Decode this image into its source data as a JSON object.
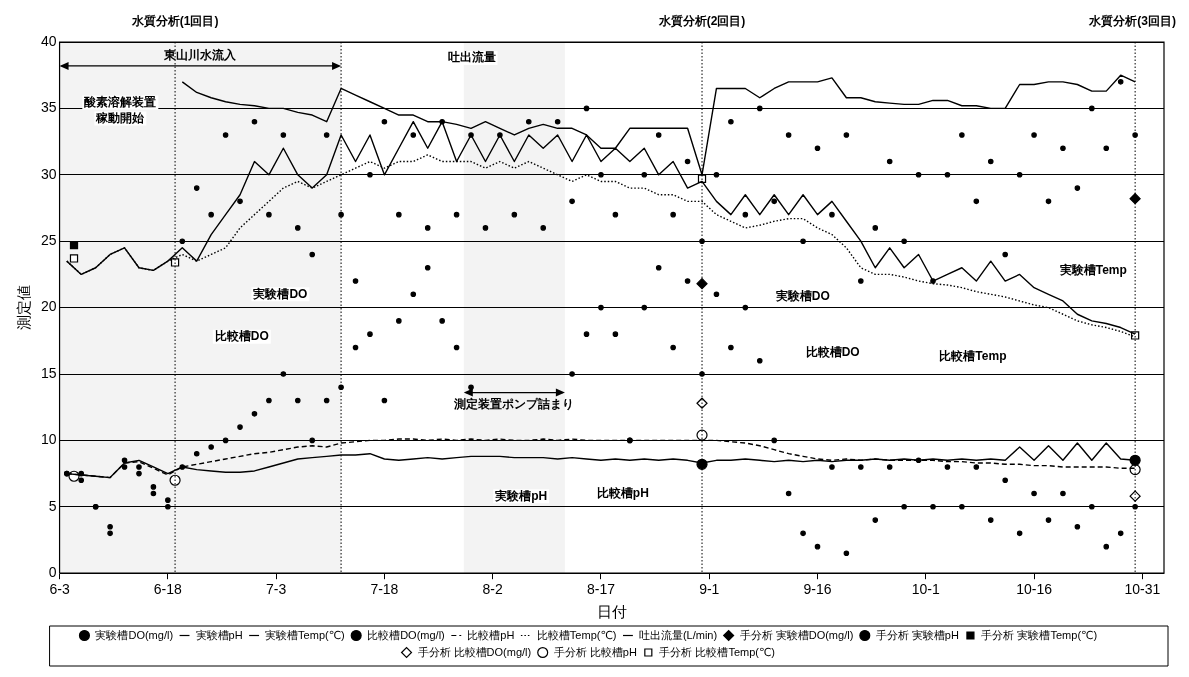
{
  "chart_data": {
    "type": "line",
    "xlabel": "日付",
    "ylabel": "測定値",
    "grid": "y",
    "legend": "bottom",
    "x": [
      "--06-04",
      "--06-06",
      "--06-08",
      "--06-10",
      "--06-12",
      "--06-14",
      "--06-16",
      "--06-18",
      "--06-20",
      "--06-22",
      "--06-24",
      "--06-26",
      "--06-28",
      "--06-30",
      "--07-02",
      "--07-04",
      "--07-06",
      "--07-08",
      "--07-10",
      "--07-12",
      "--07-14",
      "--07-16",
      "--07-18",
      "--07-20",
      "--07-22",
      "--07-24",
      "--07-26",
      "--07-28",
      "--07-30",
      "--08-01",
      "--08-03",
      "--08-05",
      "--08-07",
      "--08-09",
      "--08-11",
      "--08-13",
      "--08-15",
      "--08-17",
      "--08-19",
      "--08-21",
      "--08-23",
      "--08-25",
      "--08-27",
      "--08-29",
      "--08-31",
      "--09-02",
      "--09-04",
      "--09-06",
      "--09-08",
      "--09-10",
      "--09-12",
      "--09-14",
      "--09-16",
      "--09-18",
      "--09-20",
      "--09-22",
      "--09-24",
      "--09-26",
      "--09-28",
      "--09-30",
      "--10-02",
      "--10-04",
      "--10-06",
      "--10-08",
      "--10-10",
      "--10-12",
      "--10-14",
      "--10-16",
      "--10-18",
      "--10-20",
      "--10-22",
      "--10-24",
      "--10-26",
      "--10-28",
      "--10-30"
    ],
    "xlim": [
      "--06-03",
      "--11-03"
    ],
    "xticks": [
      {
        "value": "--06-03",
        "label": "6-3"
      },
      {
        "value": "--06-18",
        "label": "6-18"
      },
      {
        "value": "--07-03",
        "label": "7-3"
      },
      {
        "value": "--07-18",
        "label": "7-18"
      },
      {
        "value": "--08-02",
        "label": "8-2"
      },
      {
        "value": "--08-17",
        "label": "8-17"
      },
      {
        "value": "--09-01",
        "label": "9-1"
      },
      {
        "value": "--09-16",
        "label": "9-16"
      },
      {
        "value": "--10-01",
        "label": "10-1"
      },
      {
        "value": "--10-16",
        "label": "10-16"
      },
      {
        "value": "--10-31",
        "label": "10-31"
      }
    ],
    "ylim": [
      0,
      40
    ],
    "yticks": [
      0,
      5,
      10,
      15,
      20,
      25,
      30,
      35,
      40
    ],
    "series": [
      {
        "name": "実験槽DO(mg/l)",
        "type": "scatter",
        "marker": "circle",
        "color": "#000000",
        "values": [
          7.5,
          7,
          5,
          3,
          8,
          7.5,
          6,
          5,
          25,
          29,
          27,
          33,
          28,
          34,
          27,
          33,
          26,
          24,
          33,
          27,
          22,
          30,
          34,
          27,
          33,
          26,
          34,
          27,
          33,
          26,
          33,
          27,
          34,
          26,
          34,
          28,
          35,
          30,
          27,
          10,
          30,
          33,
          27,
          31,
          25,
          30,
          34,
          27,
          35,
          28,
          33,
          25,
          32,
          27,
          33,
          22,
          26,
          31,
          25,
          30,
          22,
          30,
          33,
          28,
          31,
          24,
          30,
          33,
          28,
          32,
          29,
          35,
          32,
          37,
          33
        ]
      },
      {
        "name": "実験槽pH",
        "line_style": "solid",
        "color": "#000000",
        "values": [
          7.5,
          7.4,
          7.3,
          7.2,
          8.3,
          8.5,
          8,
          7.5,
          8,
          7.8,
          7.7,
          7.6,
          7.6,
          7.7,
          8,
          8.3,
          8.6,
          8.7,
          8.8,
          8.9,
          8.9,
          9,
          8.6,
          8.5,
          8.6,
          8.7,
          8.6,
          8.7,
          8.8,
          8.8,
          8.8,
          8.7,
          8.7,
          8.7,
          8.6,
          8.7,
          8.6,
          8.5,
          8.6,
          8.5,
          8.6,
          8.5,
          8.6,
          8.5,
          8.3,
          8.5,
          8.5,
          8.6,
          8.5,
          8.4,
          8.5,
          8.4,
          8.5,
          8.4,
          8.5,
          8.5,
          8.6,
          8.5,
          8.6,
          8.5,
          8.6,
          8.5,
          8.6,
          8.5,
          8.6,
          8.5,
          9.5,
          8.5,
          9.6,
          8.5,
          9.8,
          8.5,
          9.8,
          8.6,
          8.5
        ]
      },
      {
        "name": "実験槽Temp(℃)",
        "line_style": "solid",
        "color": "#000000",
        "values": [
          23.5,
          22.5,
          23,
          24,
          24.5,
          23,
          22.8,
          23.5,
          24.5,
          23.5,
          25.5,
          27,
          28.5,
          31,
          30,
          32,
          30,
          29,
          30,
          33,
          31,
          33,
          30,
          32,
          34,
          32,
          34,
          31,
          33,
          31,
          33,
          31,
          33,
          32,
          33,
          31,
          33,
          31,
          32,
          31,
          32,
          30,
          31,
          29,
          29.5,
          28,
          27,
          28.5,
          27,
          28.5,
          27,
          28.5,
          27,
          28,
          26.5,
          25,
          23,
          24.5,
          23,
          24,
          22,
          22.5,
          23,
          22,
          23.5,
          22,
          22.5,
          21.5,
          21,
          20.5,
          19.5,
          19,
          18.8,
          18.5,
          18
        ]
      },
      {
        "name": "比較槽DO(mg/l)",
        "type": "scatter",
        "marker": "circle",
        "color": "#000000",
        "values": [
          7.5,
          7.5,
          5,
          3.5,
          8.5,
          8,
          6.5,
          5.5,
          8,
          9,
          9.5,
          10,
          11,
          12,
          13,
          15,
          13,
          10,
          13,
          14,
          17,
          18,
          13,
          19,
          21,
          23,
          19,
          17,
          14,
          null,
          null,
          null,
          null,
          null,
          null,
          15,
          18,
          20,
          18,
          10,
          20,
          23,
          17,
          22,
          15,
          21,
          17,
          20,
          16,
          10,
          6,
          3,
          2,
          8,
          1.5,
          8,
          4,
          8,
          5,
          8.5,
          5,
          8,
          5,
          8,
          4,
          7,
          3,
          6,
          4,
          6,
          3.5,
          5,
          2,
          3,
          5
        ]
      },
      {
        "name": "比較槽pH",
        "line_style": "dashed",
        "color": "#000000",
        "values": [
          7.5,
          7.4,
          7.3,
          7.2,
          8.3,
          8.4,
          7.9,
          7.4,
          8,
          8.2,
          8.4,
          8.6,
          8.8,
          9,
          9.1,
          9.3,
          9.5,
          9.6,
          9.5,
          9.8,
          9.9,
          10,
          10,
          10.1,
          10.1,
          10,
          10.1,
          10,
          10.1,
          10,
          10.1,
          10,
          10,
          10.1,
          10,
          10.1,
          10,
          10,
          10,
          10,
          10,
          10,
          10,
          10,
          10,
          10,
          9.9,
          9.8,
          9.6,
          9.3,
          9,
          8.8,
          8.6,
          8.5,
          8.6,
          8.5,
          8.6,
          8.5,
          8.5,
          8.5,
          8.5,
          8.4,
          8.4,
          8.3,
          8.3,
          8.2,
          8.2,
          8.1,
          8.1,
          8,
          8,
          8,
          8,
          7.9,
          7.9
        ]
      },
      {
        "name": "比較槽Temp(℃)",
        "line_style": "dotted",
        "color": "#000000",
        "values": [
          23.5,
          22.5,
          23,
          24,
          24.5,
          23,
          22.8,
          23.5,
          24,
          23.5,
          24,
          24.5,
          26,
          27,
          28,
          29,
          29.5,
          29,
          29.5,
          30,
          30.5,
          31,
          30.5,
          31,
          31,
          31.5,
          31,
          31,
          31,
          30.5,
          31,
          30.5,
          31,
          30.5,
          30,
          29.5,
          30,
          29.5,
          29.5,
          29,
          29,
          28.5,
          28.5,
          28,
          28,
          27,
          26.5,
          26,
          26.2,
          26.5,
          26.7,
          26.7,
          26,
          25.5,
          24.5,
          23,
          22.5,
          22.5,
          22.3,
          22,
          21.8,
          21.7,
          21.5,
          21.2,
          21,
          20.8,
          20.5,
          20.2,
          20,
          19.5,
          19,
          18.7,
          18.5,
          18.2,
          17.8
        ]
      },
      {
        "name": "吐出流量(L/min)",
        "line_style": "solid",
        "color": "#000000",
        "values": [
          null,
          null,
          null,
          null,
          null,
          null,
          null,
          null,
          37,
          36.2,
          35.8,
          35.5,
          35.3,
          35.2,
          35,
          35,
          34.7,
          34.5,
          34,
          36.5,
          36,
          35.5,
          35,
          34.5,
          34.5,
          34,
          34,
          33.8,
          33.5,
          34,
          33.5,
          33,
          33.5,
          33.8,
          33.5,
          33.5,
          33,
          32,
          32,
          33.5,
          33.5,
          33.5,
          33.5,
          33.5,
          30,
          36.5,
          36.5,
          36.5,
          35.8,
          36.5,
          37,
          37,
          37,
          37.3,
          35.8,
          35.8,
          35.5,
          35.4,
          35.3,
          35.3,
          35.6,
          35.6,
          35.2,
          35.2,
          35,
          35,
          36.8,
          36.8,
          37,
          37,
          36.8,
          36.3,
          36.3,
          37.5,
          37
        ]
      },
      {
        "name": "手分析 実験槽DO(mg/l)",
        "type": "scatter",
        "marker": "diamond",
        "color": "#000000",
        "x": [
          "--08-31",
          "--10-30"
        ],
        "values": [
          21.8,
          28.2
        ]
      },
      {
        "name": "手分析 実験槽pH",
        "type": "scatter",
        "marker": "circle",
        "color": "#000000",
        "x": [
          "--08-31",
          "--10-30"
        ],
        "values": [
          8.2,
          8.5
        ]
      },
      {
        "name": "手分析 実験槽Temp(℃)",
        "type": "scatter",
        "marker": "square",
        "color": "#000000",
        "x": [
          "--06-05"
        ],
        "values": [
          24.7
        ]
      },
      {
        "name": "手分析 比較槽DO(mg/l)",
        "type": "scatter",
        "marker": "diamond",
        "color": "#ffffff",
        "x": [
          "--08-31",
          "--10-30"
        ],
        "values": [
          12.8,
          5.8
        ]
      },
      {
        "name": "手分析 比較槽pH",
        "type": "scatter",
        "marker": "circle",
        "color": "#ffffff",
        "x": [
          "--06-05",
          "--06-19",
          "--08-31",
          "--10-30"
        ],
        "values": [
          7.3,
          7,
          10.4,
          7.8
        ]
      },
      {
        "name": "手分析 比較槽Temp(℃)",
        "type": "scatter",
        "marker": "square",
        "color": "#ffffff",
        "x": [
          "--06-05",
          "--06-19",
          "--08-31",
          "--10-30"
        ],
        "values": [
          23.7,
          23.4,
          29.7,
          17.9
        ]
      }
    ],
    "ref_lines": [
      {
        "axis": "x",
        "value": "--06-19",
        "label": "水質分析(1回目)",
        "line_style": "dotted"
      },
      {
        "axis": "x",
        "value": "--07-12",
        "label": null,
        "line_style": "dotted"
      },
      {
        "axis": "x",
        "value": "--08-31",
        "label": "水質分析(2回目)",
        "line_style": "dotted"
      },
      {
        "axis": "x",
        "value": "--10-30",
        "label": "水質分析(3回目)",
        "line_style": "dotted"
      }
    ],
    "bands": [
      {
        "axis": "x",
        "from": "--06-03",
        "to": "--07-12",
        "label": "東山川水流入",
        "color": "#f3f3f3"
      },
      {
        "axis": "x",
        "from": "--07-29",
        "to": "--08-12",
        "label": "測定装置ポンプ詰まり",
        "color": "#f3f3f3"
      }
    ],
    "annotations": [
      "吐出流量",
      "酸素溶解装置稼動開始",
      "実験槽DO",
      "比較槽DO",
      "実験槽pH",
      "比較槽pH",
      "比較槽DO",
      "実験槽DO",
      "実験槽Temp",
      "比較槽Temp"
    ]
  }
}
